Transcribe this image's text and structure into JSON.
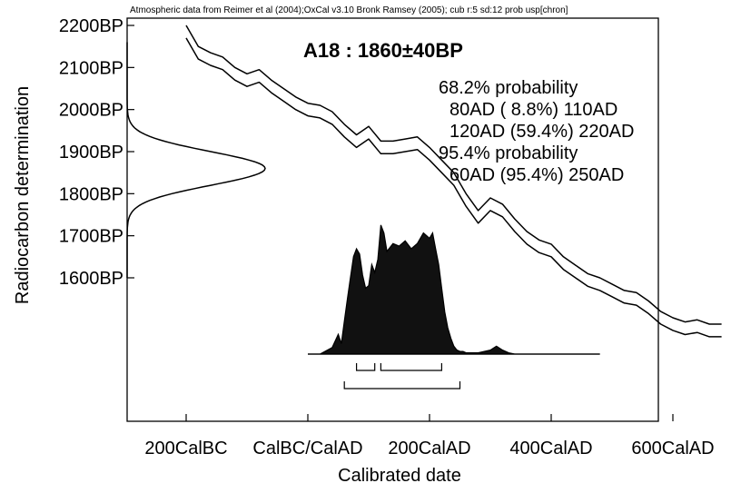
{
  "chart_data": {
    "type": "area",
    "header": "Atmospheric data from Reimer et al (2004);OxCal v3.10 Bronk Ramsey (2005); cub r:5 sd:12 prob usp[chron]",
    "title": "A18 : 1860±40BP",
    "xlabel": "Calibrated date",
    "ylabel": "Radiocarbon determination",
    "xlim": [
      -300,
      700
    ],
    "ylim": [
      1400,
      2200
    ],
    "x_ticks": [
      {
        "value": -200,
        "label": "200CalBC"
      },
      {
        "value": 0,
        "label": "CalBC/CalAD"
      },
      {
        "value": 200,
        "label": "200CalAD"
      },
      {
        "value": 400,
        "label": "400CalAD"
      },
      {
        "value": 600,
        "label": "600CalAD"
      }
    ],
    "y_ticks": [
      {
        "value": 2200,
        "label": "2200BP"
      },
      {
        "value": 2100,
        "label": "2100BP"
      },
      {
        "value": 2000,
        "label": "2000BP"
      },
      {
        "value": 1900,
        "label": "1900BP"
      },
      {
        "value": 1800,
        "label": "1800BP"
      },
      {
        "value": 1700,
        "label": "1700BP"
      },
      {
        "value": 1600,
        "label": "1600BP"
      }
    ],
    "annotation_lines": [
      "68.2% probability",
      "80AD ( 8.8%) 110AD",
      "120AD (59.4%) 220AD",
      "95.4% probability",
      "60AD (95.4%) 250AD"
    ],
    "measurement": {
      "mean": 1860,
      "sd": 40
    },
    "calibration_curve": {
      "x": [
        -200,
        -180,
        -160,
        -140,
        -120,
        -100,
        -80,
        -60,
        -40,
        -20,
        0,
        20,
        40,
        60,
        80,
        100,
        120,
        140,
        160,
        180,
        200,
        220,
        240,
        260,
        280,
        300,
        320,
        340,
        360,
        380,
        400,
        420,
        440,
        460,
        480,
        500,
        520,
        540,
        560,
        580,
        600,
        620,
        640,
        660,
        680
      ],
      "upper": [
        2200,
        2150,
        2135,
        2125,
        2100,
        2085,
        2095,
        2070,
        2050,
        2030,
        2015,
        2010,
        1995,
        1965,
        1940,
        1960,
        1925,
        1925,
        1930,
        1935,
        1910,
        1880,
        1850,
        1800,
        1760,
        1790,
        1775,
        1740,
        1710,
        1690,
        1680,
        1650,
        1630,
        1610,
        1600,
        1585,
        1570,
        1565,
        1545,
        1520,
        1505,
        1495,
        1500,
        1490,
        1490
      ],
      "lower": [
        2170,
        2120,
        2105,
        2095,
        2070,
        2055,
        2065,
        2040,
        2020,
        2000,
        1985,
        1980,
        1965,
        1935,
        1910,
        1930,
        1895,
        1895,
        1900,
        1905,
        1880,
        1850,
        1820,
        1770,
        1730,
        1760,
        1745,
        1710,
        1680,
        1660,
        1650,
        1620,
        1600,
        1580,
        1570,
        1555,
        1540,
        1535,
        1515,
        1490,
        1475,
        1465,
        1470,
        1460,
        1460
      ]
    },
    "calibrated_distribution": {
      "x": [
        0,
        20,
        40,
        50,
        55,
        60,
        65,
        70,
        75,
        80,
        85,
        90,
        95,
        100,
        105,
        110,
        115,
        120,
        125,
        130,
        140,
        150,
        160,
        170,
        180,
        190,
        200,
        205,
        210,
        215,
        220,
        225,
        230,
        235,
        240,
        245,
        250,
        255,
        260,
        280,
        300,
        310,
        320,
        330,
        340,
        360,
        380,
        400,
        420,
        440,
        460,
        480
      ],
      "p": [
        0,
        0,
        0.05,
        0.15,
        0.08,
        0.25,
        0.42,
        0.58,
        0.74,
        0.8,
        0.76,
        0.6,
        0.5,
        0.52,
        0.68,
        0.62,
        0.72,
        0.98,
        0.92,
        0.78,
        0.84,
        0.82,
        0.86,
        0.8,
        0.84,
        0.92,
        0.88,
        0.92,
        0.8,
        0.68,
        0.5,
        0.32,
        0.2,
        0.12,
        0.06,
        0.03,
        0.02,
        0.02,
        0.01,
        0.01,
        0.03,
        0.06,
        0.03,
        0.01,
        0,
        0,
        0,
        0,
        0,
        0,
        0,
        0
      ]
    },
    "ranges_68": [
      [
        80,
        110
      ],
      [
        120,
        220
      ]
    ],
    "ranges_95": [
      [
        60,
        250
      ]
    ],
    "grid": false
  }
}
